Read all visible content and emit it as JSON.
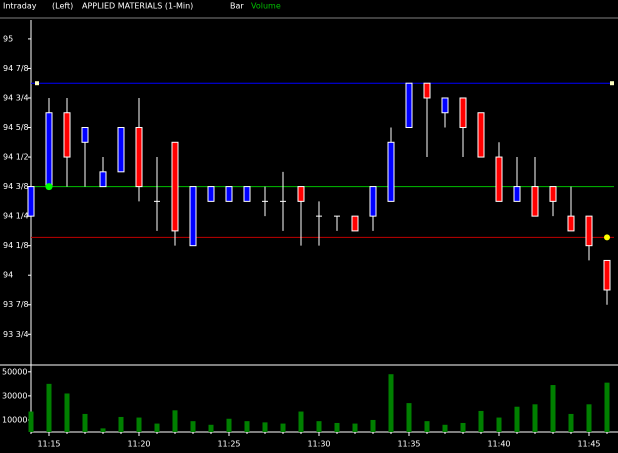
{
  "chart_data": {
    "type": "candlestick",
    "header": {
      "mode": "Intraday",
      "side": "(Left)",
      "title": "APPLIED MATERIALS  (1-Min)",
      "style": "Bar",
      "volume_label": "Volume"
    },
    "categories": [
      null,
      "11:15",
      null,
      null,
      null,
      null,
      "11:20",
      null,
      null,
      null,
      null,
      "11:25",
      null,
      null,
      null,
      null,
      "11:30",
      null,
      null,
      null,
      null,
      "11:35",
      null,
      null,
      null,
      null,
      "11:40",
      null,
      null,
      null,
      null,
      "11:45",
      null
    ],
    "up_color": "#0000ff",
    "down_color": "#ff0000",
    "flat_color": "#ffffff",
    "open": [
      94.25,
      94.375,
      94.6875,
      94.5625,
      94.375,
      94.4375,
      94.625,
      94.3125,
      94.5625,
      94.125,
      94.3125,
      94.3125,
      94.3125,
      94.3125,
      94.3125,
      94.375,
      94.25,
      94.25,
      94.25,
      94.25,
      94.3125,
      94.625,
      94.8125,
      94.6875,
      94.75,
      94.6875,
      94.5,
      94.3125,
      94.375,
      94.375,
      94.25,
      94.25,
      94.0625
    ],
    "high": [
      94.375,
      94.75,
      94.75,
      94.625,
      94.5,
      94.625,
      94.75,
      94.5,
      94.5625,
      94.375,
      94.375,
      94.375,
      94.375,
      94.375,
      94.4375,
      94.375,
      94.3125,
      94.25,
      94.25,
      94.375,
      94.625,
      94.8125,
      94.8125,
      94.75,
      94.75,
      94.6875,
      94.5625,
      94.5,
      94.5,
      94.375,
      94.375,
      94.25,
      94.0625
    ],
    "low": [
      94.1875,
      94.375,
      94.375,
      94.375,
      94.375,
      94.4375,
      94.3125,
      94.1875,
      94.125,
      94.125,
      94.3125,
      94.3125,
      94.3125,
      94.25,
      94.1875,
      94.125,
      94.125,
      94.1875,
      94.1875,
      94.1875,
      94.3125,
      94.625,
      94.5,
      94.625,
      94.5,
      94.5,
      94.3125,
      94.3125,
      94.25,
      94.25,
      94.1875,
      94.0625,
      93.875
    ],
    "close": [
      94.375,
      94.6875,
      94.5,
      94.625,
      94.4375,
      94.625,
      94.375,
      94.3125,
      94.1875,
      94.375,
      94.375,
      94.375,
      94.375,
      94.3125,
      94.3125,
      94.3125,
      94.25,
      94.25,
      94.1875,
      94.375,
      94.5625,
      94.8125,
      94.75,
      94.75,
      94.625,
      94.5,
      94.3125,
      94.375,
      94.25,
      94.3125,
      94.1875,
      94.125,
      93.9375
    ],
    "ylim": [
      93.62,
      95.08
    ],
    "yticks": [
      95,
      {
        "value": 94.875,
        "label": "94 7/8"
      },
      {
        "value": 94.75,
        "label": "94 3/4"
      },
      {
        "value": 94.625,
        "label": "94 5/8"
      },
      {
        "value": 94.5,
        "label": "94 1/2"
      },
      {
        "value": 94.375,
        "label": "94 3/8"
      },
      {
        "value": 94.25,
        "label": "94 1/4"
      },
      {
        "value": 94.125,
        "label": "94 1/8"
      },
      94,
      {
        "value": 93.875,
        "label": "93 7/8"
      },
      {
        "value": 93.75,
        "label": "93 3/4"
      }
    ],
    "lines": [
      {
        "value": 94.8125,
        "color": "#0000ff"
      },
      {
        "value": 94.375,
        "color": "#00c000"
      },
      {
        "value": 94.16,
        "color": "#c00000"
      }
    ],
    "volume": {
      "color": "#008000",
      "values": [
        17000,
        40000,
        32000,
        15000,
        3000,
        12500,
        12000,
        7000,
        18000,
        9000,
        6000,
        11000,
        9000,
        8000,
        7000,
        17000,
        9000,
        7500,
        7000,
        10000,
        48000,
        24000,
        9000,
        6000,
        7500,
        17500,
        12000,
        21000,
        23000,
        39000,
        15000,
        23000,
        41000
      ],
      "ylim": [
        0,
        54000
      ],
      "yticks": [
        50000,
        30000,
        10000
      ]
    }
  }
}
